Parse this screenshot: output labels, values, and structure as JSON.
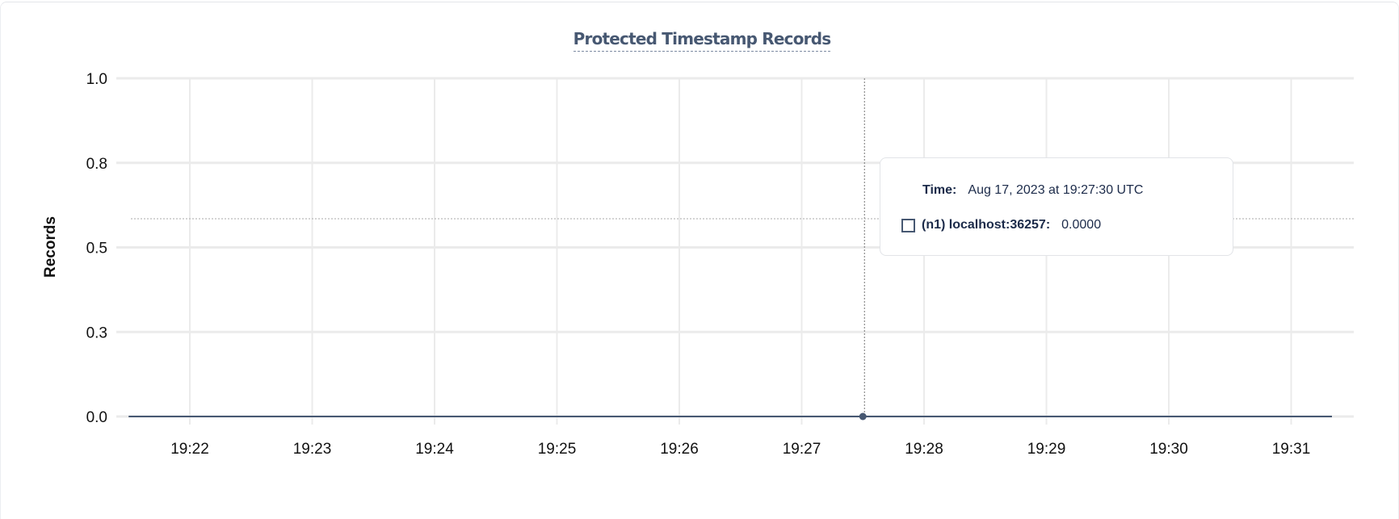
{
  "chart_data": {
    "type": "line",
    "title": "Protected Timestamp Records",
    "ylabel": "Records",
    "xlabel": "",
    "ylim": [
      0,
      1
    ],
    "yticks": [
      0,
      0.25,
      0.5,
      0.75,
      1.0
    ],
    "ytick_labels": [
      "0.0",
      "0.3",
      "0.5",
      "0.8",
      "1.0"
    ],
    "xlim": [
      "19:21:30",
      "19:31:20"
    ],
    "xtick_labels": [
      "19:22",
      "19:23",
      "19:24",
      "19:25",
      "19:26",
      "19:27",
      "19:28",
      "19:29",
      "19:30",
      "19:31"
    ],
    "grid": true,
    "series": [
      {
        "name": "(n1) localhost:36257",
        "color": "#475872",
        "x": [
          "19:21:30",
          "19:31:20"
        ],
        "y": [
          0,
          0
        ]
      }
    ],
    "hover": {
      "x": "19:27:30",
      "y": 0
    }
  },
  "tooltip": {
    "time_label": "Time:",
    "time_value": "Aug 17, 2023 at 19:27:30 UTC",
    "series_label": "(n1) localhost:36257:",
    "series_value": "0.0000"
  }
}
